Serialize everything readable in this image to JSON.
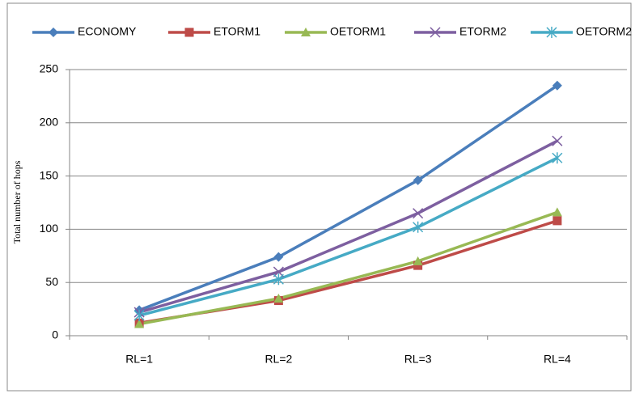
{
  "chart_data": {
    "type": "line",
    "y_label": "Total number of hops",
    "categories": [
      "RL=1",
      "RL=2",
      "RL=3",
      "RL=4"
    ],
    "series": [
      {
        "name": "ECONOMY",
        "color": "#4a7ebb",
        "marker": "diamond",
        "values": [
          24,
          74,
          146,
          235
        ]
      },
      {
        "name": "ETORM1",
        "color": "#be4b48",
        "marker": "square",
        "values": [
          12,
          33,
          66,
          108
        ]
      },
      {
        "name": "OETORM1",
        "color": "#98b954",
        "marker": "triangle",
        "values": [
          11,
          35,
          70,
          116
        ]
      },
      {
        "name": "ETORM2",
        "color": "#7d5fa0",
        "marker": "x",
        "values": [
          22,
          60,
          115,
          183
        ]
      },
      {
        "name": "OETORM2",
        "color": "#46aac5",
        "marker": "star",
        "values": [
          19,
          53,
          102,
          167
        ]
      }
    ],
    "ylim": [
      0,
      250
    ],
    "yticks": [
      0,
      50,
      100,
      150,
      200,
      250
    ],
    "grid": true,
    "legend": "top"
  }
}
